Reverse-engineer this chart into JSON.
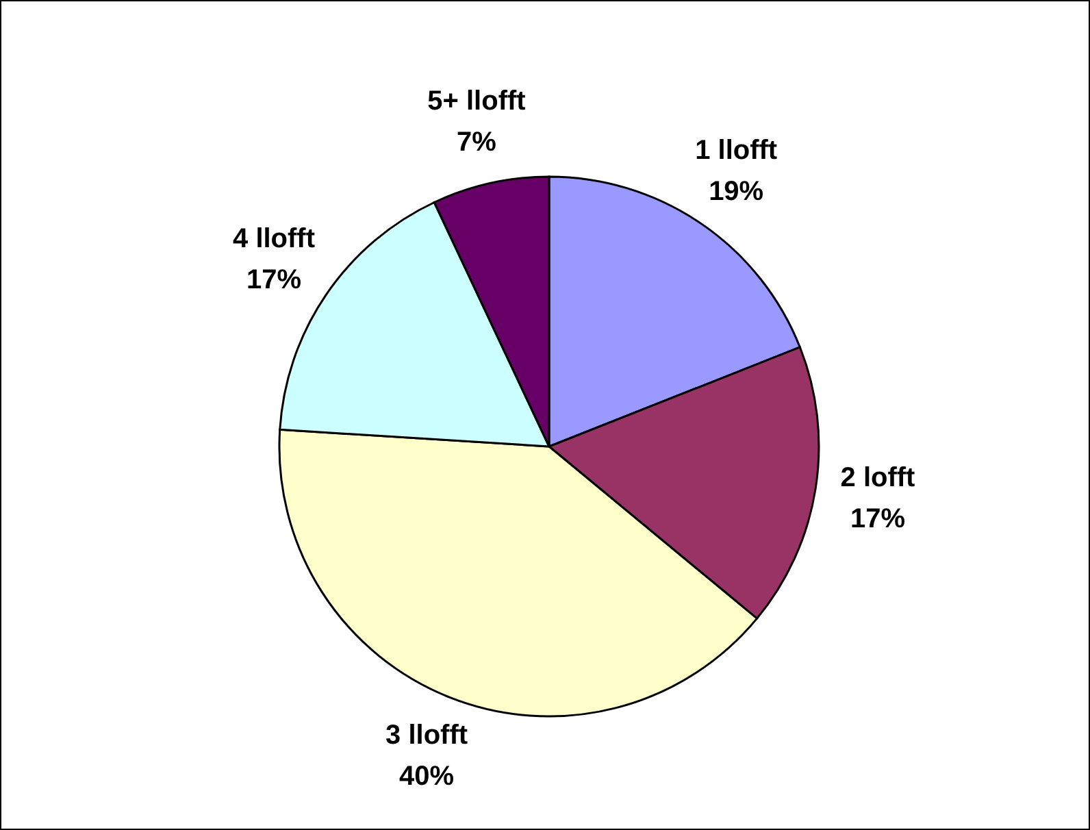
{
  "chart_data": {
    "type": "pie",
    "categories": [
      "1 llofft",
      "2 lofft",
      "3 llofft",
      "4 llofft",
      "5+ llofft"
    ],
    "values": [
      19,
      17,
      40,
      17,
      7
    ],
    "value_labels": [
      "19%",
      "17%",
      "40%",
      "17%",
      "7%"
    ],
    "colors": [
      "#9999ff",
      "#993366",
      "#ffffcc",
      "#ccffff",
      "#660066"
    ]
  }
}
